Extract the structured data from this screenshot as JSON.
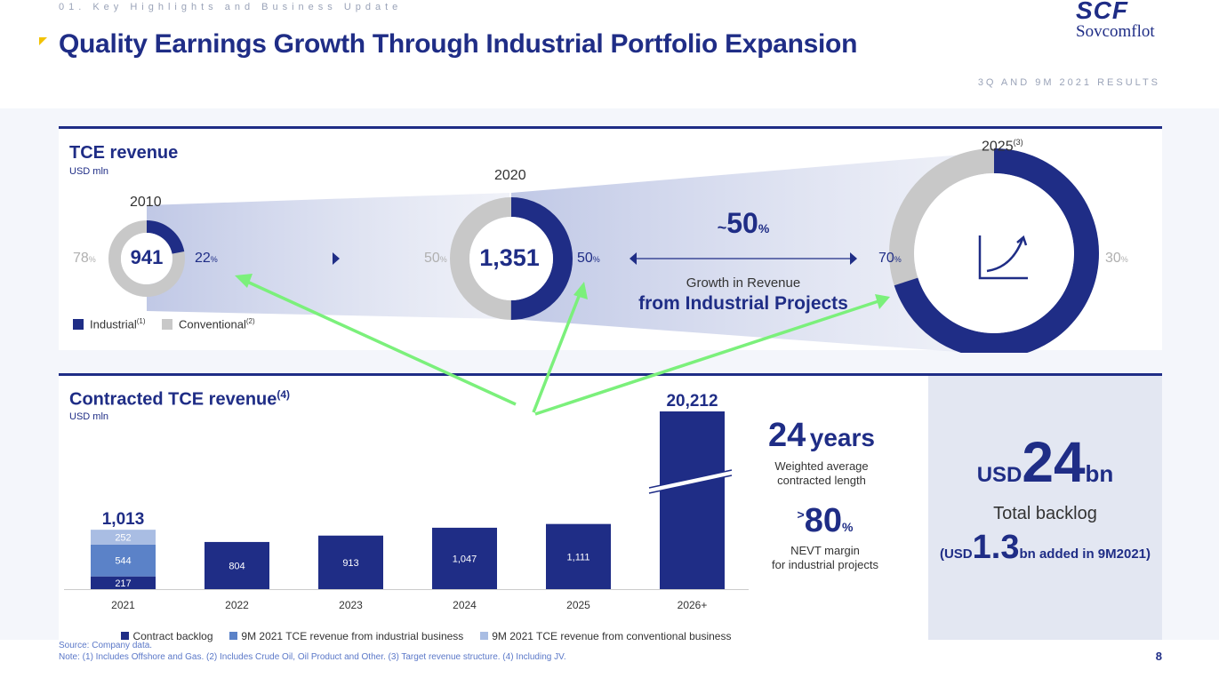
{
  "header": {
    "section_label": "01. Key Highlights and Business Update",
    "title": "Quality Earnings Growth Through Industrial Portfolio Expansion",
    "logo_mark": "SCF",
    "logo_name": "Sovcomflot",
    "results_label": "3Q AND 9M 2021 RESULTS"
  },
  "tce_revenue": {
    "title": "TCE revenue",
    "unit": "USD mln",
    "donuts": [
      {
        "year": "2010",
        "year_sup": "",
        "center": "941",
        "industrial_pct": "22",
        "conventional_pct": "78",
        "industrial_share": 0.22
      },
      {
        "year": "2020",
        "year_sup": "",
        "center": "1,351",
        "industrial_pct": "50",
        "conventional_pct": "50",
        "industrial_share": 0.5
      },
      {
        "year": "2025",
        "year_sup": "(3)",
        "center": "chart-growth-icon",
        "industrial_pct": "70",
        "conventional_pct": "30",
        "industrial_share": 0.7
      }
    ],
    "pct_unit": "%",
    "growth": {
      "prefix": "~",
      "value": "50",
      "unit": "%",
      "line1": "Growth in Revenue",
      "line2": "from Industrial Projects"
    },
    "legend": [
      {
        "label": "Industrial",
        "sup": "(1)",
        "color": "#1f2d86"
      },
      {
        "label": "Conventional",
        "sup": "(2)",
        "color": "#c8c8c8"
      }
    ]
  },
  "contracted": {
    "title": "Contracted TCE revenue",
    "title_sup": "(4)",
    "unit": "USD mln",
    "stats": {
      "years_value": "24",
      "years_unit": "years",
      "years_line1": "Weighted average",
      "years_line2": "contracted length",
      "nevt_prefix": ">",
      "nevt_value": "80",
      "nevt_unit": "%",
      "nevt_line1": "NEVT margin",
      "nevt_line2": "for industrial projects"
    },
    "backlog": {
      "prefix": "USD",
      "value": "24",
      "suffix": "bn",
      "label": "Total backlog",
      "added_open": "(USD",
      "added_value": "1.3",
      "added_close": "bn added in 9M2021)"
    },
    "legend": [
      {
        "label": "Contract backlog",
        "color": "#1f2d86"
      },
      {
        "label": "9M 2021 TCE revenue from industrial business",
        "color": "#5b82c8"
      },
      {
        "label": "9M 2021 TCE revenue from conventional business",
        "color": "#a9bde3"
      }
    ]
  },
  "chart_data": {
    "type": "bar",
    "categories": [
      "2021",
      "2022",
      "2023",
      "2024",
      "2025",
      "2026+"
    ],
    "series": [
      {
        "name": "Contract backlog",
        "values": [
          217,
          804,
          913,
          1047,
          1111,
          20212
        ]
      },
      {
        "name": "9M 2021 TCE revenue from industrial business",
        "values": [
          544,
          0,
          0,
          0,
          0,
          0
        ]
      },
      {
        "name": "9M 2021 TCE revenue from conventional business",
        "values": [
          252,
          0,
          0,
          0,
          0,
          0
        ]
      }
    ],
    "labels": [
      "217",
      "804",
      "913",
      "1,047",
      "1,111",
      ""
    ],
    "stack_labels": [
      "544",
      "252"
    ],
    "totals": [
      "1,013",
      "",
      "",
      "",
      "",
      "20,212"
    ],
    "broken_axis": true,
    "ylabel": "USD mln"
  },
  "footer": {
    "source": "Source: Company data.",
    "note": "Note: (1) Includes Offshore and Gas. (2) Includes Crude Oil, Oil Product and Other. (3) Target revenue structure. (4) Including JV.",
    "page_number": "8"
  },
  "colors": {
    "brand_navy": "#1f2d86",
    "gray": "#c8c8c8",
    "industrial_light": "#5b82c8",
    "conventional_light": "#a9bde3",
    "annotation_arrow": "#7bf07b"
  }
}
